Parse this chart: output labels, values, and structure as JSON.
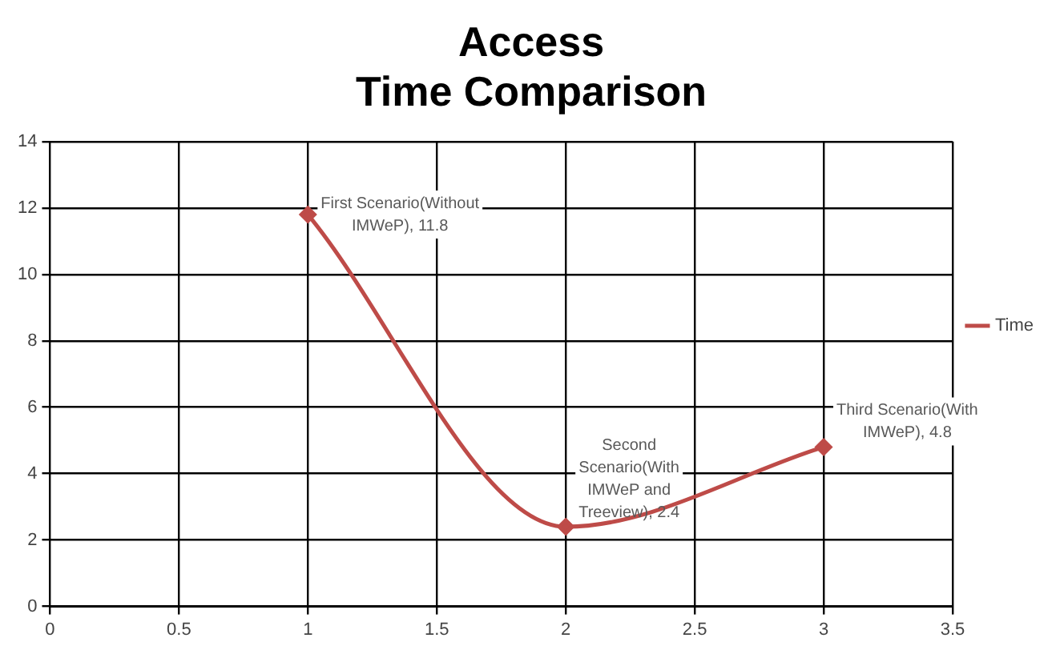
{
  "chart_data": {
    "type": "line",
    "title": "Access\nTime Comparison",
    "x": [
      1,
      2,
      3
    ],
    "series": [
      {
        "name": "Time",
        "color": "#be4b48",
        "values": [
          11.8,
          2.4,
          4.8
        ]
      }
    ],
    "xlim": [
      0,
      3.5
    ],
    "xticks": [
      0,
      0.5,
      1,
      1.5,
      2,
      2.5,
      3,
      3.5
    ],
    "ylim": [
      0,
      14
    ],
    "yticks": [
      0,
      2,
      4,
      6,
      8,
      10,
      12,
      14
    ],
    "grid": true,
    "legend": "right",
    "marker": "diamond",
    "line_style": "solid",
    "annotations": [
      {
        "text": "First Scenario(Without IMWeP), 11.8",
        "x": 1,
        "y": 11.8
      },
      {
        "text": "Second Scenario(With IMWeP and Treeview), 2.4",
        "x": 2,
        "y": 2.4
      },
      {
        "text": "Third Scenario(With IMWeP), 4.8",
        "x": 3,
        "y": 4.8
      }
    ]
  }
}
